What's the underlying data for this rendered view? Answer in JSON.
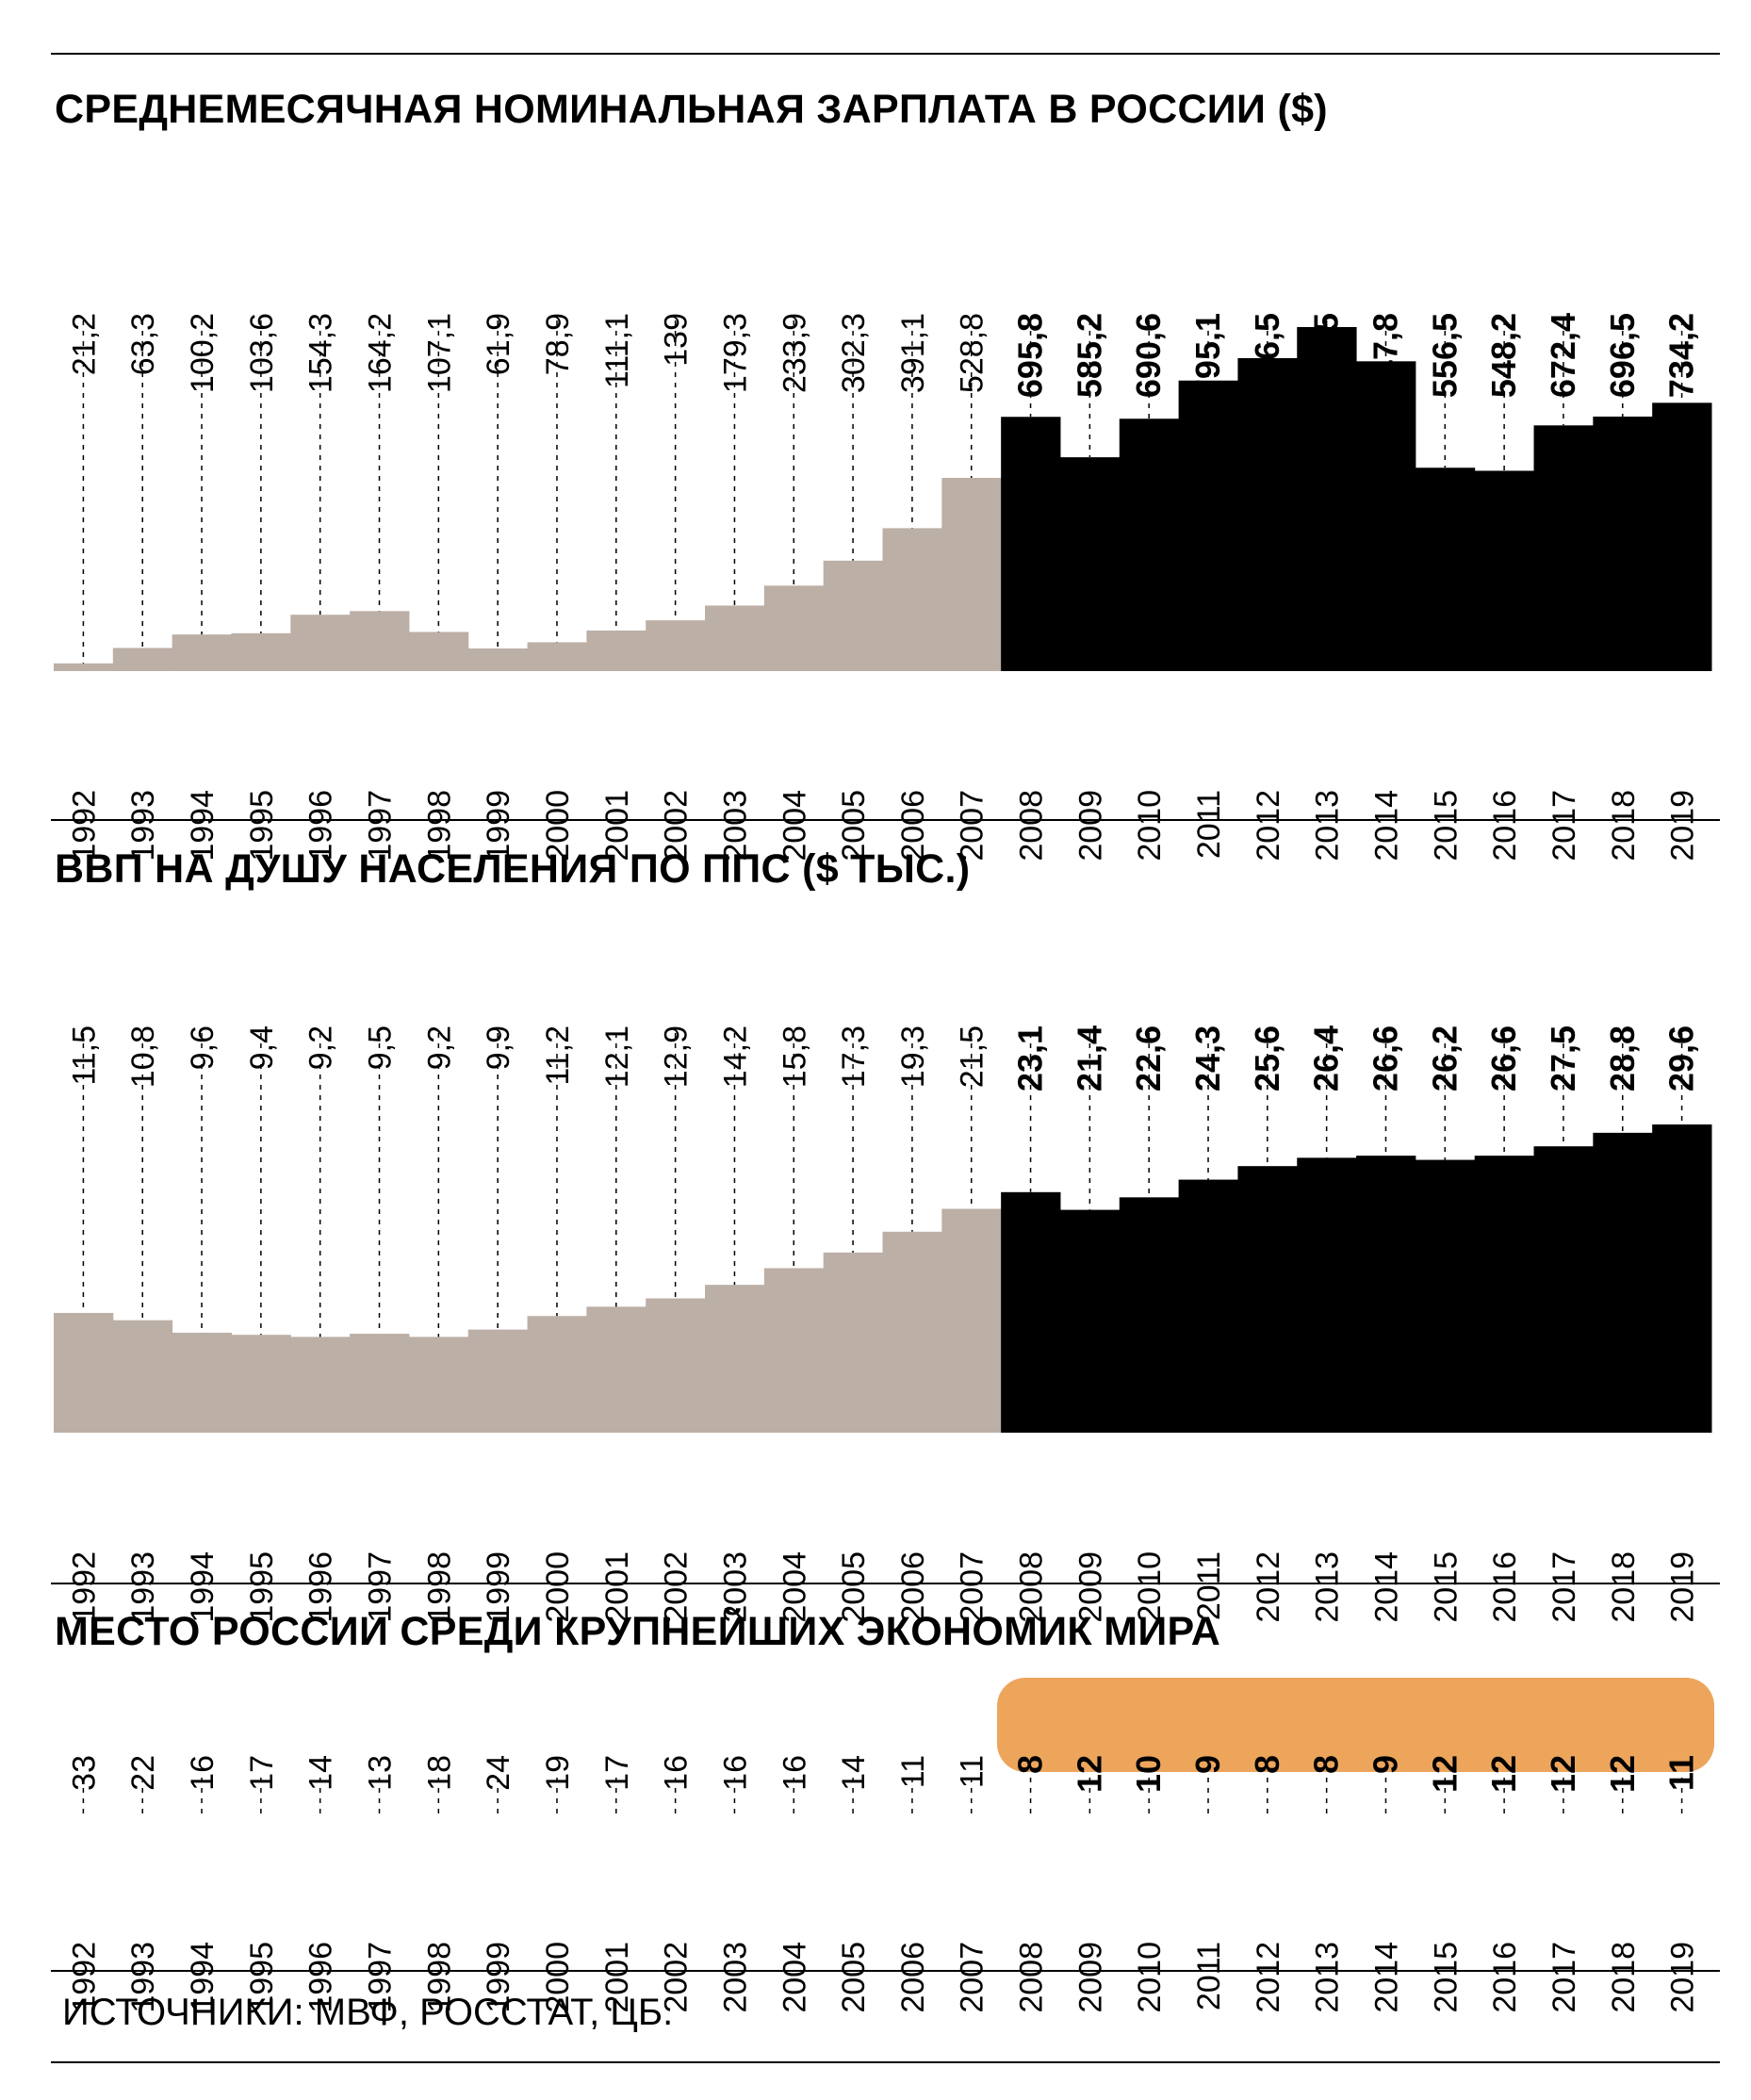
{
  "colors": {
    "pre2008": "#bcafa6",
    "post2008": "#000000",
    "highlight": "#eda55c"
  },
  "source": "ИСТОЧНИКИ: МВФ, РОССТАТ, ЦБ.",
  "chart_data": [
    {
      "type": "bar",
      "title": "СРЕДНЕМЕСЯЧНАЯ НОМИНАЛЬНАЯ ЗАРПЛАТА В РОССИИ ($)",
      "categories": [
        "1992",
        "1993",
        "1994",
        "1995",
        "1996",
        "1997",
        "1998",
        "1999",
        "2000",
        "2001",
        "2002",
        "2003",
        "2004",
        "2005",
        "2006",
        "2007",
        "2008",
        "2009",
        "2010",
        "2011",
        "2012",
        "2013",
        "2014",
        "2015",
        "2016",
        "2017",
        "2018",
        "2019"
      ],
      "values": [
        21.2,
        63.3,
        100.2,
        103.6,
        154.3,
        164.2,
        107.1,
        61.9,
        78.9,
        111.1,
        139,
        179.3,
        233.9,
        302.3,
        391.1,
        528.8,
        695.8,
        585.2,
        690.6,
        795.1,
        856.5,
        941.5,
        847.8,
        556.5,
        548.2,
        672.4,
        696.5,
        734.2
      ],
      "labels": [
        "21,2",
        "63,3",
        "100,2",
        "103,6",
        "154,3",
        "164,2",
        "107,1",
        "61,9",
        "78,9",
        "111,1",
        "139",
        "179,3",
        "233,9",
        "302,3",
        "391,1",
        "528,8",
        "695,8",
        "585,2",
        "690,6",
        "795,1",
        "856,5",
        "941,5",
        "847,8",
        "556,5",
        "548,2",
        "672,4",
        "696,5",
        "734,2"
      ],
      "ylim": [
        0,
        941.5
      ]
    },
    {
      "type": "bar",
      "title": "ВВП НА ДУШУ НАСЕЛЕНИЯ ПО ППС ($ ТЫС.)",
      "categories": [
        "1992",
        "1993",
        "1994",
        "1995",
        "1996",
        "1997",
        "1998",
        "1999",
        "2000",
        "2001",
        "2002",
        "2003",
        "2004",
        "2005",
        "2006",
        "2007",
        "2008",
        "2009",
        "2010",
        "2011",
        "2012",
        "2013",
        "2014",
        "2015",
        "2016",
        "2017",
        "2018",
        "2019"
      ],
      "values": [
        11.5,
        10.8,
        9.6,
        9.4,
        9.2,
        9.5,
        9.2,
        9.9,
        11.2,
        12.1,
        12.9,
        14.2,
        15.8,
        17.3,
        19.3,
        21.5,
        23.1,
        21.4,
        22.6,
        24.3,
        25.6,
        26.4,
        26.6,
        26.2,
        26.6,
        27.5,
        28.8,
        29.6
      ],
      "labels": [
        "11,5",
        "10,8",
        "9,6",
        "9,4",
        "9,2",
        "9,5",
        "9,2",
        "9,9",
        "11,2",
        "12,1",
        "12,9",
        "14,2",
        "15,8",
        "17,3",
        "19,3",
        "21,5",
        "23,1",
        "21,4",
        "22,6",
        "24,3",
        "25,6",
        "26,4",
        "26,6",
        "26,2",
        "26,6",
        "27,5",
        "28,8",
        "29,6"
      ],
      "ylim": [
        0,
        29.6
      ]
    },
    {
      "type": "table",
      "title": "МЕСТО РОССИИ СРЕДИ КРУПНЕЙШИХ ЭКОНОМИК МИРА",
      "categories": [
        "1992",
        "1993",
        "1994",
        "1995",
        "1996",
        "1997",
        "1998",
        "1999",
        "2000",
        "2001",
        "2002",
        "2003",
        "2004",
        "2005",
        "2006",
        "2007",
        "2008",
        "2009",
        "2010",
        "2011",
        "2012",
        "2013",
        "2014",
        "2015",
        "2016",
        "2017",
        "2018",
        "2019"
      ],
      "values": [
        33,
        22,
        16,
        17,
        14,
        13,
        18,
        24,
        19,
        17,
        16,
        16,
        16,
        14,
        11,
        11,
        8,
        12,
        10,
        9,
        8,
        8,
        9,
        12,
        12,
        12,
        12,
        11
      ],
      "labels": [
        "33",
        "22",
        "16",
        "17",
        "14",
        "13",
        "18",
        "24",
        "19",
        "17",
        "16",
        "16",
        "16",
        "14",
        "11",
        "11",
        "8",
        "12",
        "10",
        "9",
        "8",
        "8",
        "9",
        "12",
        "12",
        "12",
        "12",
        "11"
      ],
      "highlight_from": "2008"
    }
  ]
}
